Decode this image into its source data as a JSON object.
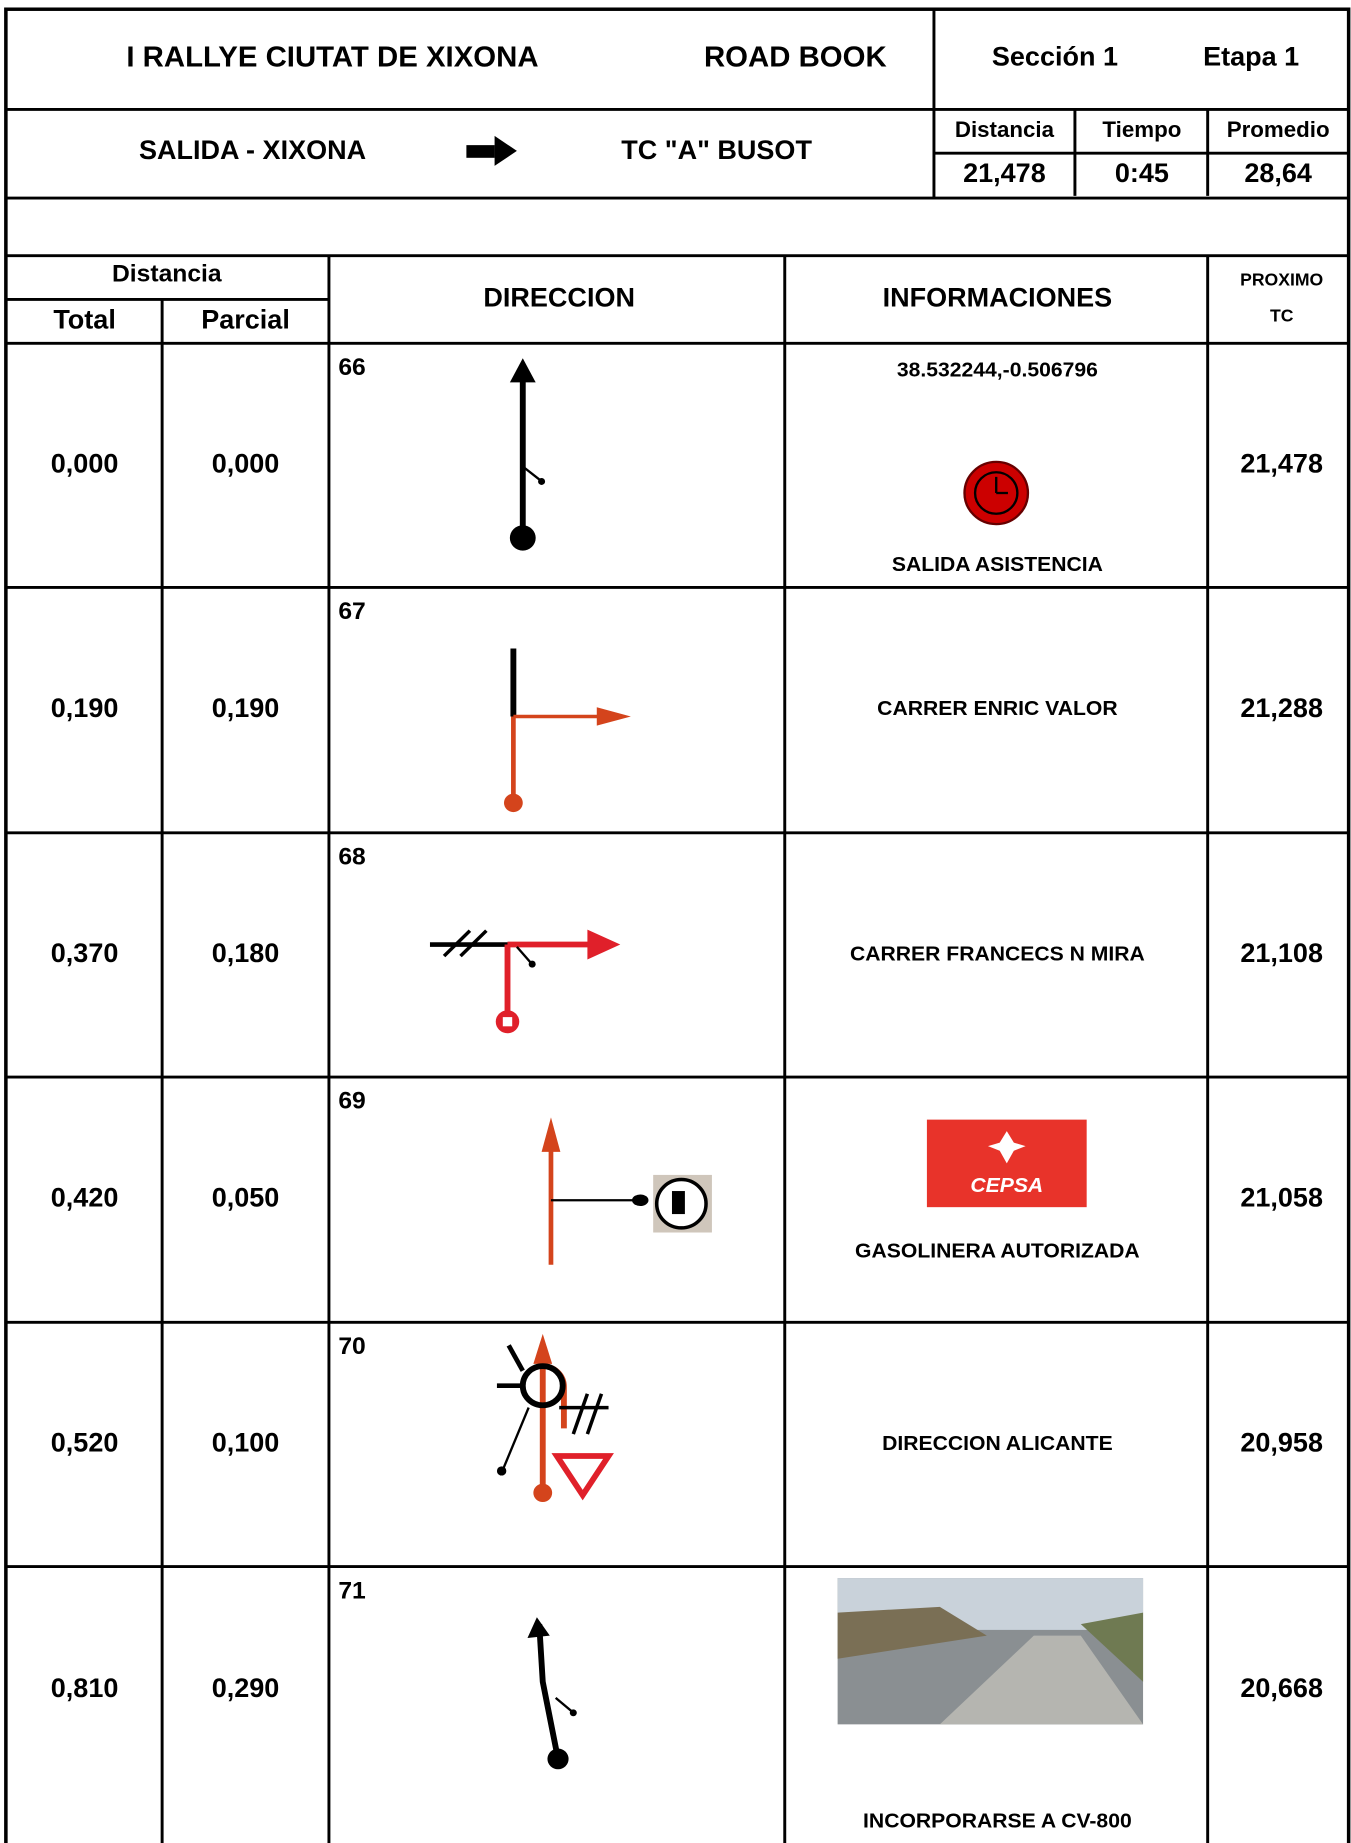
{
  "header": {
    "title": "I RALLYE CIUTAT DE XIXONA",
    "subtitle": "ROAD BOOK",
    "section": "Sección 1",
    "stage": "Etapa  1"
  },
  "route": {
    "from": "SALIDA - XIXONA",
    "to": "TC \"A\"  BUSOT"
  },
  "summary": {
    "labels": [
      "Distancia",
      "Tiempo",
      "Promedio"
    ],
    "values": [
      "21,478",
      "0:45",
      "28,64"
    ]
  },
  "columns": {
    "distance": "Distancia",
    "total": "Total",
    "partial": "Parcial",
    "direction": "DIRECCION",
    "info": "INFORMACIONES",
    "next_tc": [
      "PROXIMO",
      "TC"
    ]
  },
  "rows": [
    {
      "number": "66",
      "total": "0,000",
      "partial": "0,000",
      "coords": "38.532244,-0.506796",
      "info": "SALIDA ASISTENCIA",
      "next": "21,478"
    },
    {
      "number": "67",
      "total": "0,190",
      "partial": "0,190",
      "info": "CARRER ENRIC VALOR",
      "next": "21,288"
    },
    {
      "number": "68",
      "total": "0,370",
      "partial": "0,180",
      "info": "CARRER FRANCECS N MIRA",
      "next": "21,108"
    },
    {
      "number": "69",
      "total": "0,420",
      "partial": "0,050",
      "logo": "CEPSA",
      "info": "GASOLINERA AUTORIZADA",
      "next": "21,058"
    },
    {
      "number": "70",
      "total": "0,520",
      "partial": "0,100",
      "info": "DIRECCION ALICANTE",
      "next": "20,958"
    },
    {
      "number": "71",
      "total": "0,810",
      "partial": "0,290",
      "info": "INCORPORARSE A CV-800",
      "next": "20,668"
    }
  ]
}
